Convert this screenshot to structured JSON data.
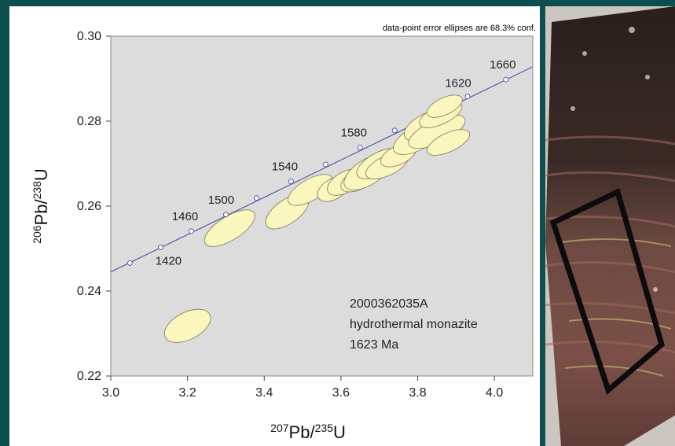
{
  "chart_data": {
    "type": "scatter",
    "subtype": "concordia-error-ellipses",
    "annotation_top": "data-point error ellipses are 68.3% conf.",
    "xlabel": {
      "mass_x": "207",
      "element_x": "Pb",
      "mass_x2": "235",
      "element_x2": "U"
    },
    "ylabel": {
      "mass_y": "206",
      "element_y": "Pb",
      "mass_y2": "238",
      "element_y2": "U"
    },
    "xlim": [
      3.0,
      4.1
    ],
    "ylim": [
      0.22,
      0.3
    ],
    "x_ticks": [
      "3.0",
      "3.2",
      "3.4",
      "3.6",
      "3.8",
      "4.0"
    ],
    "y_ticks": [
      "0.22",
      "0.24",
      "0.26",
      "0.28",
      "0.30"
    ],
    "concordia_line": {
      "x": [
        3.0,
        4.1
      ],
      "y": [
        0.2445,
        0.2928
      ],
      "color": "#5a5aa8"
    },
    "age_markers": [
      {
        "x": 3.05,
        "y": 0.2466,
        "label": ""
      },
      {
        "x": 3.13,
        "y": 0.2503,
        "label": "1420"
      },
      {
        "x": 3.21,
        "y": 0.2541,
        "label": "1460"
      },
      {
        "x": 3.3,
        "y": 0.258,
        "label": "1500"
      },
      {
        "x": 3.38,
        "y": 0.2619,
        "label": ""
      },
      {
        "x": 3.47,
        "y": 0.2658,
        "label": "1540"
      },
      {
        "x": 3.56,
        "y": 0.2698,
        "label": ""
      },
      {
        "x": 3.65,
        "y": 0.2738,
        "label": "1580"
      },
      {
        "x": 3.74,
        "y": 0.2778,
        "label": ""
      },
      {
        "x": 3.93,
        "y": 0.2858,
        "label": "1620"
      },
      {
        "x": 4.03,
        "y": 0.2898,
        "label": "1660"
      }
    ],
    "age_label_positions": [
      "1420",
      "1460",
      "1500",
      "1540",
      "1580",
      "1620",
      "1660"
    ],
    "ellipses": [
      {
        "cx": 3.2,
        "cy": 0.2318,
        "rx": 0.065,
        "ry": 0.0032,
        "rot": -27
      },
      {
        "cx": 3.31,
        "cy": 0.2548,
        "rx": 0.075,
        "ry": 0.0028,
        "rot": -32
      },
      {
        "cx": 3.46,
        "cy": 0.2587,
        "rx": 0.065,
        "ry": 0.0028,
        "rot": -35
      },
      {
        "cx": 3.52,
        "cy": 0.2638,
        "rx": 0.065,
        "ry": 0.0025,
        "rot": -30
      },
      {
        "cx": 3.58,
        "cy": 0.264,
        "rx": 0.045,
        "ry": 0.0024,
        "rot": -30
      },
      {
        "cx": 3.61,
        "cy": 0.2656,
        "rx": 0.05,
        "ry": 0.0024,
        "rot": -30
      },
      {
        "cx": 3.65,
        "cy": 0.2665,
        "rx": 0.055,
        "ry": 0.0024,
        "rot": -28
      },
      {
        "cx": 3.67,
        "cy": 0.268,
        "rx": 0.07,
        "ry": 0.003,
        "rot": -32
      },
      {
        "cx": 3.7,
        "cy": 0.27,
        "rx": 0.065,
        "ry": 0.0026,
        "rot": -28
      },
      {
        "cx": 3.72,
        "cy": 0.2695,
        "rx": 0.06,
        "ry": 0.0023,
        "rot": -25
      },
      {
        "cx": 3.75,
        "cy": 0.272,
        "rx": 0.05,
        "ry": 0.0022,
        "rot": -25
      },
      {
        "cx": 3.8,
        "cy": 0.276,
        "rx": 0.07,
        "ry": 0.0028,
        "rot": -28
      },
      {
        "cx": 3.83,
        "cy": 0.279,
        "rx": 0.07,
        "ry": 0.003,
        "rot": -25
      },
      {
        "cx": 3.85,
        "cy": 0.2775,
        "rx": 0.08,
        "ry": 0.0027,
        "rot": -25
      },
      {
        "cx": 3.86,
        "cy": 0.2815,
        "rx": 0.06,
        "ry": 0.0022,
        "rot": -25
      },
      {
        "cx": 3.87,
        "cy": 0.2835,
        "rx": 0.05,
        "ry": 0.002,
        "rot": -25
      },
      {
        "cx": 3.88,
        "cy": 0.275,
        "rx": 0.06,
        "ry": 0.0022,
        "rot": -25
      }
    ],
    "sample_label": [
      "2000362035A",
      "hydrothermal monazite",
      "1623 Ma"
    ],
    "grid": false,
    "colors": {
      "plot_bg": "#dcdcdc",
      "ellipse_fill": "#fbf6bd",
      "ellipse_stroke": "#7a775a",
      "axis": "#444444"
    }
  }
}
